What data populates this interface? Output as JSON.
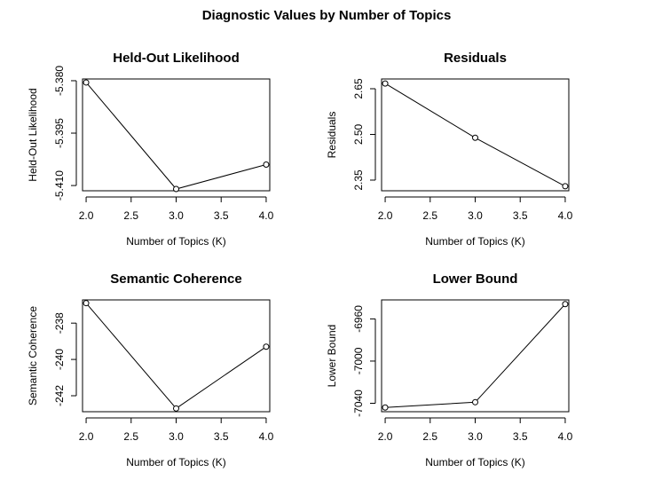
{
  "figure": {
    "title": "Diagnostic Values by Number of Topics"
  },
  "chart_data": [
    {
      "type": "line",
      "title": "Held-Out Likelihood",
      "xlabel": "Number of Topics (K)",
      "ylabel": "Held-Out Likelihood",
      "x": [
        2,
        3,
        4
      ],
      "y": [
        -5.3805,
        -5.411,
        -5.404
      ],
      "xlim": [
        1.96,
        4.04
      ],
      "ylim": [
        -5.4115,
        -5.3795
      ],
      "xticks": [
        2.0,
        2.5,
        3.0,
        3.5,
        4.0
      ],
      "xtick_labels": [
        "2.0",
        "2.5",
        "3.0",
        "3.5",
        "4.0"
      ],
      "yticks": [
        -5.38,
        -5.395,
        -5.41
      ],
      "ytick_labels": [
        "-5.380",
        "-5.395",
        "-5.410"
      ],
      "marker": "open-circle",
      "grid": false
    },
    {
      "type": "line",
      "title": "Residuals",
      "xlabel": "Number of Topics (K)",
      "ylabel": "Residuals",
      "x": [
        2,
        3,
        4
      ],
      "y": [
        2.667,
        2.489,
        2.33
      ],
      "xlim": [
        1.96,
        4.04
      ],
      "ylim": [
        2.315,
        2.682
      ],
      "xticks": [
        2.0,
        2.5,
        3.0,
        3.5,
        4.0
      ],
      "xtick_labels": [
        "2.0",
        "2.5",
        "3.0",
        "3.5",
        "4.0"
      ],
      "yticks": [
        2.35,
        2.5,
        2.65
      ],
      "ytick_labels": [
        "2.35",
        "2.50",
        "2.65"
      ],
      "marker": "open-circle",
      "grid": false
    },
    {
      "type": "line",
      "title": "Semantic Coherence",
      "xlabel": "Number of Topics (K)",
      "ylabel": "Semantic Coherence",
      "x": [
        2,
        3,
        4
      ],
      "y": [
        -236.9,
        -242.7,
        -239.3
      ],
      "xlim": [
        1.96,
        4.04
      ],
      "ylim": [
        -242.88,
        -236.72
      ],
      "xticks": [
        2.0,
        2.5,
        3.0,
        3.5,
        4.0
      ],
      "xtick_labels": [
        "2.0",
        "2.5",
        "3.0",
        "3.5",
        "4.0"
      ],
      "yticks": [
        -238,
        -240,
        -242
      ],
      "ytick_labels": [
        "-238",
        "-240",
        "-242"
      ],
      "marker": "open-circle",
      "grid": false
    },
    {
      "type": "line",
      "title": "Lower Bound",
      "xlabel": "Number of Topics (K)",
      "ylabel": "Lower Bound",
      "x": [
        2,
        3,
        4
      ],
      "y": [
        -7044,
        -7039,
        -6946
      ],
      "xlim": [
        1.96,
        4.04
      ],
      "ylim": [
        -7048,
        -6942
      ],
      "xticks": [
        2.0,
        2.5,
        3.0,
        3.5,
        4.0
      ],
      "xtick_labels": [
        "2.0",
        "2.5",
        "3.0",
        "3.5",
        "4.0"
      ],
      "yticks": [
        -7040,
        -7000,
        -6960
      ],
      "ytick_labels": [
        "-7040",
        "-7000",
        "-6960"
      ],
      "marker": "open-circle",
      "grid": false
    }
  ]
}
